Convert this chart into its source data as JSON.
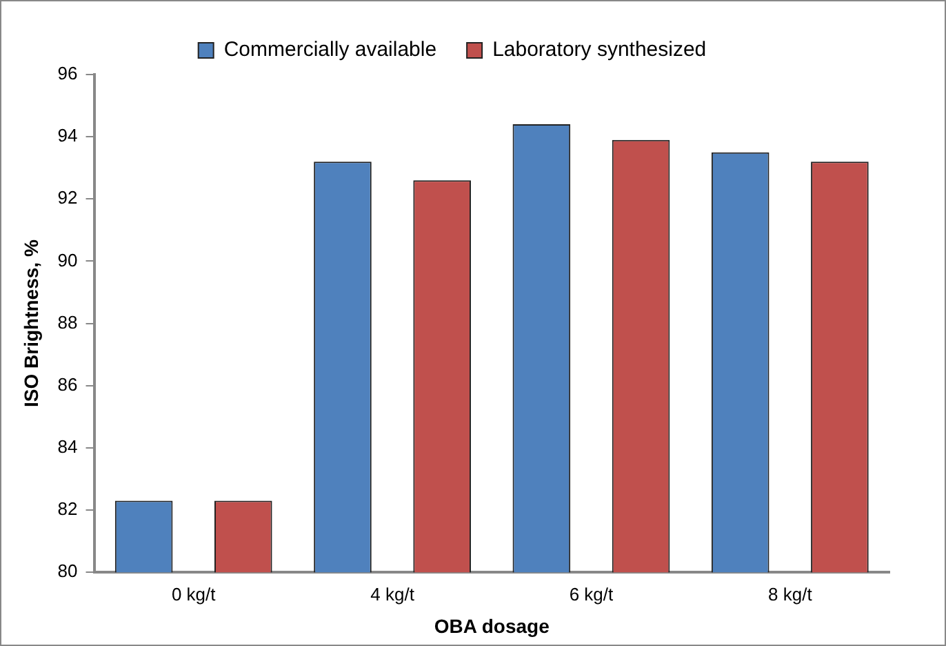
{
  "chart_data": {
    "type": "bar",
    "xlabel": "OBA dosage",
    "ylabel": "ISO Brightness, %",
    "categories": [
      "0 kg/t",
      "4 kg/t",
      "6 kg/t",
      "8 kg/t"
    ],
    "series": [
      {
        "name": "Commercially available",
        "color": "#4f81bd",
        "values": [
          82.3,
          93.2,
          94.4,
          93.5
        ]
      },
      {
        "name": "Laboratory synthesized",
        "color": "#c0504d",
        "values": [
          82.3,
          92.6,
          93.9,
          93.2
        ]
      }
    ],
    "ylim": [
      80,
      96
    ],
    "yticks": [
      80,
      82,
      84,
      86,
      88,
      90,
      92,
      94,
      96
    ],
    "grid": false,
    "legend": "top"
  }
}
